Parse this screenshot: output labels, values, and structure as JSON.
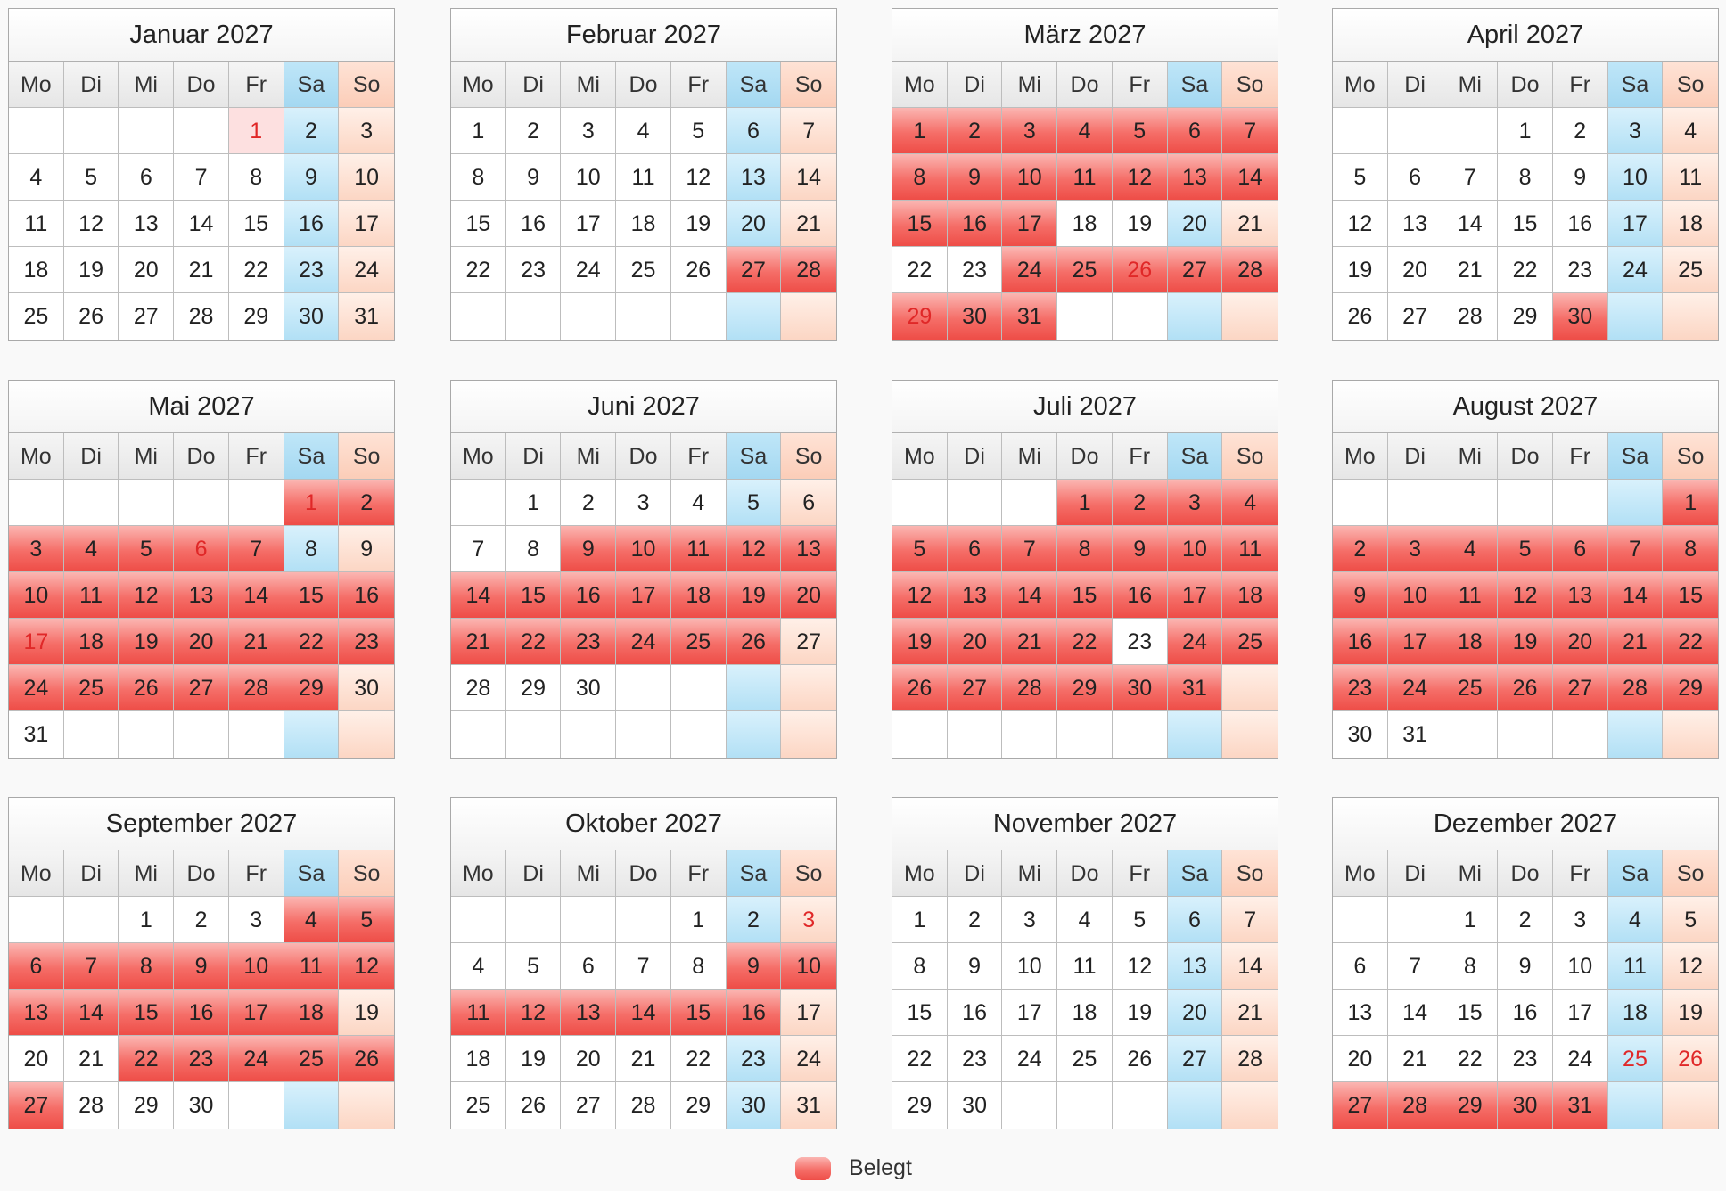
{
  "weekday_labels": [
    "Mo",
    "Di",
    "Mi",
    "Do",
    "Fr",
    "Sa",
    "So"
  ],
  "legend": {
    "label": "Belegt",
    "color": "#f56e68"
  },
  "colors": {
    "saturday": "#b2e0f5",
    "sunday": "#fcd6c4",
    "booked": "#f56e68",
    "holiday_text": "#e02828"
  },
  "months": [
    {
      "title": "Januar 2027",
      "first_weekday": 4,
      "days": 31,
      "rows": 5,
      "booked": [],
      "holiday_text": [
        1
      ],
      "holiday_bg": [
        1
      ]
    },
    {
      "title": "Februar 2027",
      "first_weekday": 0,
      "days": 28,
      "rows": 5,
      "booked": [
        27,
        28
      ],
      "holiday_text": [],
      "holiday_bg": []
    },
    {
      "title": "März 2027",
      "first_weekday": 0,
      "days": 31,
      "rows": 5,
      "booked": [
        1,
        2,
        3,
        4,
        5,
        6,
        7,
        8,
        9,
        10,
        11,
        12,
        13,
        14,
        15,
        16,
        17,
        24,
        25,
        26,
        27,
        28,
        29,
        30,
        31
      ],
      "holiday_text": [
        26,
        29
      ],
      "holiday_bg": []
    },
    {
      "title": "April 2027",
      "first_weekday": 3,
      "days": 30,
      "rows": 5,
      "booked": [
        30
      ],
      "holiday_text": [],
      "holiday_bg": []
    },
    {
      "title": "Mai 2027",
      "first_weekday": 5,
      "days": 31,
      "rows": 6,
      "booked": [
        1,
        2,
        3,
        4,
        5,
        6,
        7,
        10,
        11,
        12,
        13,
        14,
        15,
        16,
        17,
        18,
        19,
        20,
        21,
        22,
        23,
        24,
        25,
        26,
        27,
        28,
        29
      ],
      "holiday_text": [
        1,
        6,
        17
      ],
      "holiday_bg": []
    },
    {
      "title": "Juni 2027",
      "first_weekday": 1,
      "days": 30,
      "rows": 6,
      "booked": [
        9,
        10,
        11,
        12,
        13,
        14,
        15,
        16,
        17,
        18,
        19,
        20,
        21,
        22,
        23,
        24,
        25,
        26
      ],
      "holiday_text": [],
      "holiday_bg": []
    },
    {
      "title": "Juli 2027",
      "first_weekday": 3,
      "days": 31,
      "rows": 6,
      "booked": [
        1,
        2,
        3,
        4,
        5,
        6,
        7,
        8,
        9,
        10,
        11,
        12,
        13,
        14,
        15,
        16,
        17,
        18,
        19,
        20,
        21,
        22,
        24,
        25,
        26,
        27,
        28,
        29,
        30,
        31
      ],
      "holiday_text": [],
      "holiday_bg": []
    },
    {
      "title": "August 2027",
      "first_weekday": 6,
      "days": 31,
      "rows": 6,
      "booked": [
        1,
        2,
        3,
        4,
        5,
        6,
        7,
        8,
        9,
        10,
        11,
        12,
        13,
        14,
        15,
        16,
        17,
        18,
        19,
        20,
        21,
        22,
        23,
        24,
        25,
        26,
        27,
        28,
        29
      ],
      "holiday_text": [],
      "holiday_bg": []
    },
    {
      "title": "September 2027",
      "first_weekday": 2,
      "days": 30,
      "rows": 5,
      "booked": [
        4,
        5,
        6,
        7,
        8,
        9,
        10,
        11,
        12,
        13,
        14,
        15,
        16,
        17,
        18,
        22,
        23,
        24,
        25,
        26,
        27
      ],
      "holiday_text": [],
      "holiday_bg": []
    },
    {
      "title": "Oktober 2027",
      "first_weekday": 4,
      "days": 31,
      "rows": 5,
      "booked": [
        9,
        10,
        11,
        12,
        13,
        14,
        15,
        16
      ],
      "holiday_text": [
        3
      ],
      "holiday_bg": []
    },
    {
      "title": "November 2027",
      "first_weekday": 0,
      "days": 30,
      "rows": 5,
      "booked": [],
      "holiday_text": [],
      "holiday_bg": []
    },
    {
      "title": "Dezember 2027",
      "first_weekday": 2,
      "days": 31,
      "rows": 5,
      "booked": [
        27,
        28,
        29,
        30,
        31
      ],
      "holiday_text": [
        25,
        26
      ],
      "holiday_bg": []
    }
  ]
}
